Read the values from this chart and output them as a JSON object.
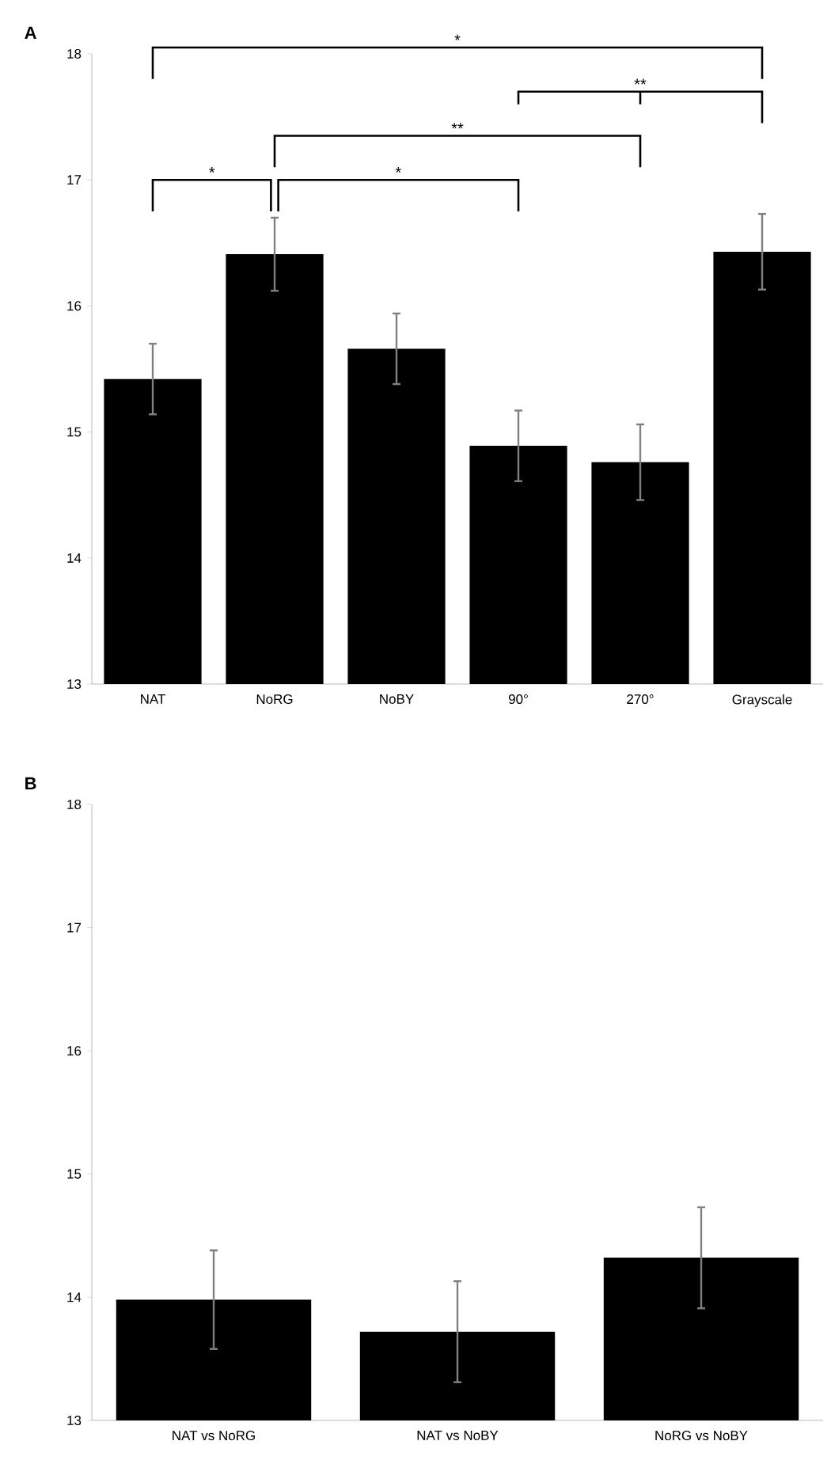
{
  "chart_data": [
    {
      "type": "bar",
      "title": "A",
      "categories": [
        "NAT",
        "NoRG",
        "NoBY",
        "90°",
        "270°",
        "Grayscale"
      ],
      "values": [
        15.42,
        16.41,
        15.66,
        14.89,
        14.76,
        16.43
      ],
      "errors": [
        0.28,
        0.29,
        0.28,
        0.28,
        0.3,
        0.3
      ],
      "color": "#000000",
      "ylim": [
        13,
        18
      ],
      "yticks": [
        13,
        14,
        15,
        16,
        17,
        18
      ],
      "annotations": [
        "*",
        "**",
        "**",
        "*",
        "*"
      ]
    },
    {
      "type": "bar",
      "title": "B",
      "categories": [
        "NAT vs NoRG",
        "NAT vs NoBY",
        "NoRG vs NoBY"
      ],
      "values": [
        13.98,
        13.72,
        14.32
      ],
      "errors": [
        0.4,
        0.41,
        0.41
      ],
      "color": "#000000",
      "ylim": [
        13,
        18
      ],
      "yticks": [
        13,
        14,
        15,
        16,
        17,
        18
      ]
    }
  ]
}
